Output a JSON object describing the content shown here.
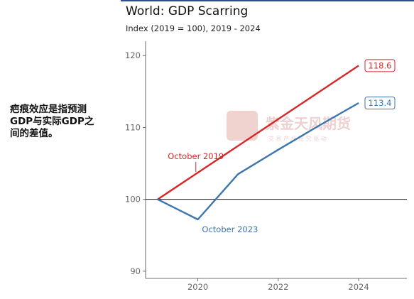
{
  "note": {
    "text": "疤痕效应是指预测\nGDP与实际GDP之\n间的差值。"
  },
  "watermark": {
    "logo_text": "紫金天风期货",
    "sub_text": "交 易 产 业 研 究 驱 动"
  },
  "colors": {
    "red": "#d62728",
    "blue": "#3b75af",
    "frame": "#2f4f8f"
  },
  "chart_data": {
    "type": "line",
    "title": "World: GDP Scarring",
    "subtitle": "Index (2019 = 100), 2019 - 2024",
    "xlabel": "",
    "ylabel": "",
    "xlim": [
      2018.7,
      2025.2
    ],
    "ylim": [
      89,
      122
    ],
    "x_ticks": [
      2020,
      2022,
      2024
    ],
    "y_ticks": [
      90,
      100,
      110,
      120
    ],
    "reference_line": 100,
    "grid": false,
    "series": [
      {
        "name": "October 2019",
        "color": "#d62728",
        "x": [
          2019,
          2024
        ],
        "y": [
          100,
          118.6
        ],
        "end_label": "118.6"
      },
      {
        "name": "October 2023",
        "color": "#3b75af",
        "x": [
          2019,
          2020,
          2021,
          2022,
          2023,
          2024
        ],
        "y": [
          100,
          97.2,
          103.5,
          106.9,
          110.2,
          113.4
        ],
        "end_label": "113.4"
      }
    ]
  }
}
